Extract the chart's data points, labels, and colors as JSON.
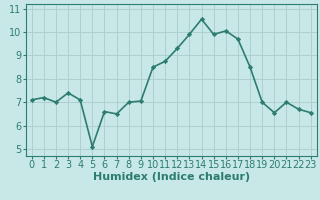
{
  "x": [
    0,
    1,
    2,
    3,
    4,
    5,
    6,
    7,
    8,
    9,
    10,
    11,
    12,
    13,
    14,
    15,
    16,
    17,
    18,
    19,
    20,
    21,
    22,
    23
  ],
  "y": [
    7.1,
    7.2,
    7.0,
    7.4,
    7.1,
    5.1,
    6.6,
    6.5,
    7.0,
    7.05,
    8.5,
    8.75,
    9.3,
    9.9,
    10.55,
    9.9,
    10.05,
    9.7,
    8.5,
    7.0,
    6.55,
    7.0,
    6.7,
    6.55
  ],
  "xlabel": "Humidex (Indice chaleur)",
  "xlim": [
    -0.5,
    23.5
  ],
  "ylim": [
    4.7,
    11.2
  ],
  "yticks": [
    5,
    6,
    7,
    8,
    9,
    10,
    11
  ],
  "xticks": [
    0,
    1,
    2,
    3,
    4,
    5,
    6,
    7,
    8,
    9,
    10,
    11,
    12,
    13,
    14,
    15,
    16,
    17,
    18,
    19,
    20,
    21,
    22,
    23
  ],
  "line_color": "#2d7d6f",
  "marker": "D",
  "marker_size": 2.2,
  "background_color": "#c8e8e8",
  "grid_color": "#b0d0d0",
  "axis_color": "#2d7d6f",
  "xlabel_fontsize": 8,
  "tick_fontsize": 7,
  "line_width": 1.2
}
